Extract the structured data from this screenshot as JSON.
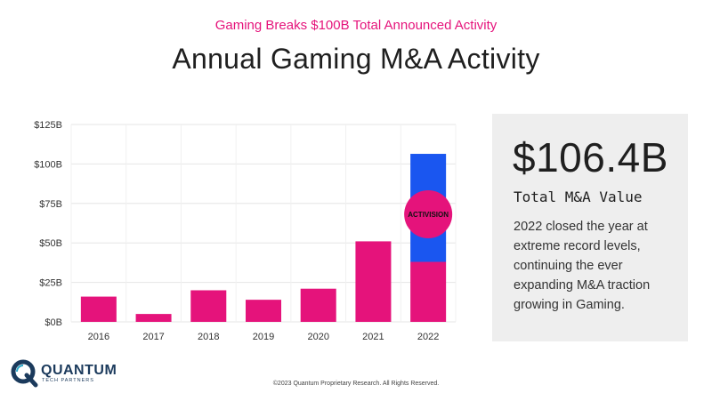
{
  "header": {
    "subtitle": "Gaming Breaks $100B Total Announced Activity",
    "title": "Annual Gaming M&A Activity"
  },
  "chart_data": {
    "type": "bar",
    "stacked": true,
    "categories": [
      "2016",
      "2017",
      "2018",
      "2019",
      "2020",
      "2021",
      "2022"
    ],
    "series": [
      {
        "values": [
          16,
          5,
          20,
          14,
          21,
          51,
          38
        ],
        "color": "#e5137b"
      },
      {
        "values": [
          0,
          0,
          0,
          0,
          0,
          0,
          68.4
        ],
        "color": "#1a56f0"
      }
    ],
    "y_ticks": [
      "$0B",
      "$25B",
      "$50B",
      "$75B",
      "$100B",
      "$125B"
    ],
    "ylim": [
      0,
      125
    ],
    "grid": true,
    "annotation": {
      "text": "ACTIVISION",
      "category": "2022",
      "color": "#e5137b"
    }
  },
  "panel": {
    "value": "$106.4B",
    "label": "Total M&A Value",
    "description": "2022 closed the year at extreme record levels, continuing the ever expanding M&A traction growing in Gaming."
  },
  "brand": {
    "name": "QUANTUM",
    "tagline": "TECH PARTNERS",
    "color": "#1b3a5c"
  },
  "footer": {
    "copyright": "©2023 Quantum Proprietary Research. All Rights Reserved."
  }
}
